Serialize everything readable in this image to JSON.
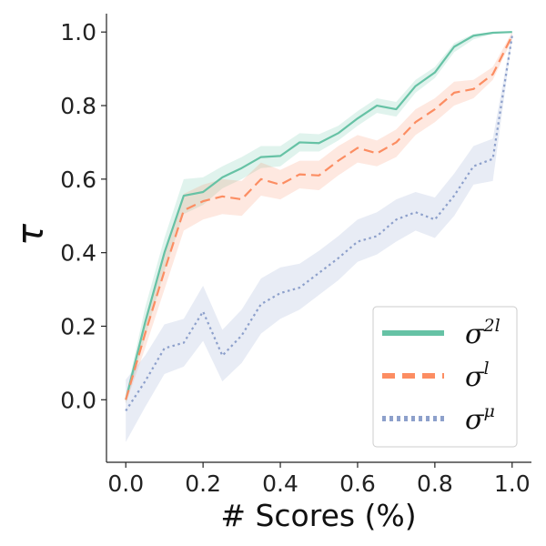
{
  "chart_data": {
    "type": "line",
    "title": "",
    "xlabel": "# Scores (%)",
    "ylabel": "τ",
    "xlim": [
      -0.05,
      1.05
    ],
    "ylim": [
      -0.17,
      1.05
    ],
    "x_ticks": [
      "0.0",
      "0.2",
      "0.4",
      "0.6",
      "0.8",
      "1.0"
    ],
    "y_ticks": [
      "0.0",
      "0.2",
      "0.4",
      "0.6",
      "0.8",
      "1.0"
    ],
    "grid": false,
    "legend_position": "lower-right",
    "x": [
      0.0,
      0.05,
      0.1,
      0.15,
      0.2,
      0.25,
      0.3,
      0.35,
      0.4,
      0.45,
      0.5,
      0.55,
      0.6,
      0.65,
      0.7,
      0.75,
      0.8,
      0.85,
      0.9,
      0.95,
      1.0
    ],
    "series": [
      {
        "name": "σ^{2l}",
        "legend_base": "σ",
        "legend_sup": "2l",
        "color": "#66c2a5",
        "style": "solid",
        "values": [
          0.0,
          0.21,
          0.4,
          0.555,
          0.565,
          0.605,
          0.63,
          0.66,
          0.663,
          0.7,
          0.698,
          0.725,
          0.765,
          0.8,
          0.79,
          0.853,
          0.89,
          0.96,
          0.99,
          0.998,
          1.0
        ],
        "band_lower": [
          -0.01,
          0.17,
          0.35,
          0.505,
          0.53,
          0.575,
          0.6,
          0.63,
          0.635,
          0.675,
          0.675,
          0.705,
          0.745,
          0.78,
          0.77,
          0.835,
          0.875,
          0.945,
          0.98,
          0.995,
          1.0
        ],
        "band_upper": [
          0.01,
          0.25,
          0.44,
          0.6,
          0.605,
          0.635,
          0.66,
          0.69,
          0.69,
          0.725,
          0.722,
          0.745,
          0.785,
          0.82,
          0.81,
          0.87,
          0.905,
          0.97,
          0.995,
          1.0,
          1.0
        ]
      },
      {
        "name": "σ^{l}",
        "legend_base": "σ",
        "legend_sup": "l",
        "color": "#fc8d62",
        "style": "dashed",
        "values": [
          0.0,
          0.18,
          0.35,
          0.515,
          0.54,
          0.553,
          0.545,
          0.6,
          0.585,
          0.613,
          0.61,
          0.65,
          0.685,
          0.67,
          0.7,
          0.755,
          0.79,
          0.835,
          0.845,
          0.885,
          0.99
        ],
        "band_lower": [
          -0.01,
          0.14,
          0.3,
          0.46,
          0.49,
          0.505,
          0.5,
          0.555,
          0.545,
          0.575,
          0.57,
          0.61,
          0.645,
          0.635,
          0.66,
          0.72,
          0.755,
          0.8,
          0.82,
          0.87,
          0.98
        ],
        "band_upper": [
          0.01,
          0.22,
          0.4,
          0.56,
          0.585,
          0.6,
          0.595,
          0.645,
          0.625,
          0.65,
          0.65,
          0.69,
          0.72,
          0.705,
          0.735,
          0.79,
          0.82,
          0.865,
          0.87,
          0.905,
          1.0
        ]
      },
      {
        "name": "σ^{μ}",
        "legend_base": "σ",
        "legend_sup": "μ",
        "color": "#8da0cb",
        "style": "dotted",
        "values": [
          -0.03,
          0.05,
          0.14,
          0.155,
          0.24,
          0.12,
          0.175,
          0.26,
          0.29,
          0.305,
          0.345,
          0.385,
          0.43,
          0.445,
          0.49,
          0.51,
          0.49,
          0.555,
          0.635,
          0.655,
          0.99
        ],
        "band_lower": [
          -0.115,
          -0.02,
          0.07,
          0.09,
          0.16,
          0.05,
          0.1,
          0.18,
          0.22,
          0.245,
          0.285,
          0.325,
          0.375,
          0.395,
          0.43,
          0.46,
          0.44,
          0.5,
          0.585,
          0.595,
          0.98
        ],
        "band_upper": [
          0.055,
          0.12,
          0.205,
          0.22,
          0.31,
          0.19,
          0.245,
          0.33,
          0.36,
          0.37,
          0.405,
          0.445,
          0.49,
          0.51,
          0.545,
          0.565,
          0.55,
          0.615,
          0.69,
          0.71,
          1.0
        ]
      }
    ]
  }
}
